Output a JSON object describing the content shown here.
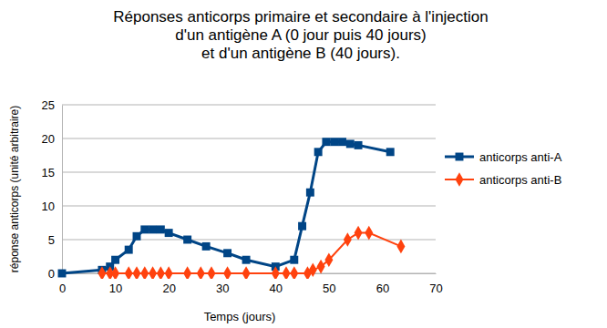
{
  "chart_data": {
    "type": "line",
    "title": "Réponses anticorps primaire et secondaire à l'injection\nd'un antigène A (0 jour puis 40 jours)\net d'un antigène B (40 jours).",
    "x_label": "Temps (jours)",
    "y_label": "réponse anticorps (unité arbitraire)",
    "xlim": [
      0,
      70
    ],
    "xticks": [
      0,
      10,
      20,
      30,
      40,
      50,
      60,
      70
    ],
    "ylim": [
      0,
      25
    ],
    "yticks": [
      0,
      5,
      10,
      15,
      20,
      25
    ],
    "grid": true,
    "legend": "right",
    "series": [
      {
        "name": "anticorps anti-A",
        "color": "#004586",
        "marker": "square",
        "line_style": "solid",
        "x": [
          0,
          7.5,
          9,
          10,
          12.5,
          14,
          15.5,
          17,
          18.5,
          20,
          23.5,
          27,
          31,
          34.5,
          40,
          43.5,
          45,
          46.5,
          48,
          49.5,
          51,
          52.5,
          54,
          55.5,
          61.5
        ],
        "values": [
          0,
          0.5,
          1,
          2,
          3.5,
          5.5,
          6.5,
          6.5,
          6.5,
          6,
          5,
          4,
          3,
          2,
          1,
          2,
          7,
          12,
          18,
          19.5,
          19.5,
          19.5,
          19.2,
          19,
          18
        ]
      },
      {
        "name": "anticorps anti-B",
        "color": "#ff420e",
        "marker": "diamond",
        "line_style": "solid",
        "x": [
          7.5,
          9,
          10,
          12.5,
          14,
          15.5,
          17,
          18.5,
          20,
          23.5,
          26,
          28,
          31,
          34.5,
          40,
          42,
          43.5,
          46,
          47,
          48.5,
          50,
          53.5,
          55.5,
          57.5,
          63.5
        ],
        "values": [
          0,
          0,
          0,
          0,
          0,
          0,
          0,
          0,
          0,
          0,
          0,
          0,
          0,
          0,
          0,
          0,
          0,
          0,
          0.5,
          1,
          2,
          5,
          6,
          6,
          4
        ]
      }
    ]
  }
}
